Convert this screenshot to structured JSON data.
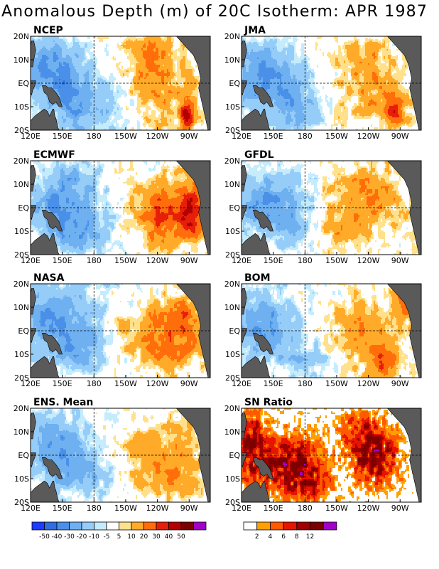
{
  "title": "Anomalous Depth (m) of 20C Isotherm: APR 1987",
  "chart_data": [
    {
      "type": "heatmap",
      "title": "NCEP",
      "xticks": [
        "120E",
        "150E",
        "180",
        "150W",
        "120W",
        "90W"
      ],
      "yticks": [
        "20N",
        "10N",
        "EQ",
        "10S",
        "20S"
      ],
      "xlim": [
        120,
        290
      ],
      "ylim": [
        -20,
        20
      ],
      "features": [
        {
          "x": 240,
          "y": 0,
          "sx": 28,
          "sy": 11,
          "v": 18
        },
        {
          "x": 268,
          "y": -14,
          "sx": 5,
          "sy": 5,
          "v": 38
        },
        {
          "x": 230,
          "y": 14,
          "sx": 15,
          "sy": 5,
          "v": 12
        },
        {
          "x": 140,
          "y": 5,
          "sx": 25,
          "sy": 10,
          "v": -32
        },
        {
          "x": 165,
          "y": -12,
          "sx": 20,
          "sy": 8,
          "v": -22
        },
        {
          "x": 200,
          "y": -8,
          "sx": 15,
          "sy": 8,
          "v": -12
        }
      ]
    },
    {
      "type": "heatmap",
      "title": "JMA",
      "xticks": [
        "120E",
        "150E",
        "180",
        "150W",
        "120W",
        "90W"
      ],
      "yticks": [
        "20N",
        "10N",
        "EQ",
        "10S",
        "20S"
      ],
      "xlim": [
        120,
        290
      ],
      "ylim": [
        -20,
        20
      ],
      "features": [
        {
          "x": 245,
          "y": -2,
          "sx": 25,
          "sy": 10,
          "v": 15
        },
        {
          "x": 265,
          "y": -13,
          "sx": 6,
          "sy": 5,
          "v": 30
        },
        {
          "x": 235,
          "y": 12,
          "sx": 15,
          "sy": 5,
          "v": 10
        },
        {
          "x": 140,
          "y": 4,
          "sx": 25,
          "sy": 10,
          "v": -30
        },
        {
          "x": 170,
          "y": -12,
          "sx": 20,
          "sy": 8,
          "v": -20
        }
      ]
    },
    {
      "type": "heatmap",
      "title": "ECMWF",
      "xticks": [
        "120E",
        "150E",
        "180",
        "150W",
        "120W",
        "90W"
      ],
      "yticks": [
        "20N",
        "10N",
        "EQ",
        "10S",
        "20S"
      ],
      "xlim": [
        120,
        290
      ],
      "ylim": [
        -20,
        20
      ],
      "features": [
        {
          "x": 255,
          "y": 0,
          "sx": 30,
          "sy": 8,
          "v": 28
        },
        {
          "x": 272,
          "y": -4,
          "sx": 8,
          "sy": 8,
          "v": 20
        },
        {
          "x": 240,
          "y": -12,
          "sx": 12,
          "sy": 6,
          "v": 12
        },
        {
          "x": 150,
          "y": 0,
          "sx": 25,
          "sy": 8,
          "v": -32
        },
        {
          "x": 170,
          "y": -12,
          "sx": 20,
          "sy": 6,
          "v": -18
        },
        {
          "x": 160,
          "y": 14,
          "sx": 20,
          "sy": 5,
          "v": -12
        }
      ]
    },
    {
      "type": "heatmap",
      "title": "GFDL",
      "xticks": [
        "120E",
        "150E",
        "180",
        "150W",
        "120W",
        "90W"
      ],
      "yticks": [
        "20N",
        "10N",
        "EQ",
        "10S",
        "20S"
      ],
      "xlim": [
        120,
        290
      ],
      "ylim": [
        -20,
        20
      ],
      "features": [
        {
          "x": 235,
          "y": 0,
          "sx": 30,
          "sy": 9,
          "v": 16
        },
        {
          "x": 205,
          "y": -12,
          "sx": 15,
          "sy": 6,
          "v": 10
        },
        {
          "x": 245,
          "y": 10,
          "sx": 20,
          "sy": 5,
          "v": 10
        },
        {
          "x": 145,
          "y": 2,
          "sx": 25,
          "sy": 9,
          "v": -30
        },
        {
          "x": 170,
          "y": -10,
          "sx": 15,
          "sy": 6,
          "v": -16
        }
      ]
    },
    {
      "type": "heatmap",
      "title": "NASA",
      "xticks": [
        "120E",
        "150E",
        "180",
        "150W",
        "120W",
        "90W"
      ],
      "yticks": [
        "20N",
        "10N",
        "EQ",
        "10S",
        "20S"
      ],
      "xlim": [
        120,
        290
      ],
      "ylim": [
        -20,
        20
      ],
      "features": [
        {
          "x": 245,
          "y": 0,
          "sx": 28,
          "sy": 8,
          "v": 22
        },
        {
          "x": 250,
          "y": -10,
          "sx": 20,
          "sy": 6,
          "v": 12
        },
        {
          "x": 265,
          "y": 8,
          "sx": 10,
          "sy": 6,
          "v": 14
        },
        {
          "x": 145,
          "y": 4,
          "sx": 28,
          "sy": 10,
          "v": -30
        },
        {
          "x": 165,
          "y": -10,
          "sx": 20,
          "sy": 6,
          "v": -16
        }
      ]
    },
    {
      "type": "heatmap",
      "title": "BOM",
      "xticks": [
        "120E",
        "150E",
        "180",
        "150W",
        "120W",
        "90W"
      ],
      "yticks": [
        "20N",
        "10N",
        "EQ",
        "10S",
        "20S"
      ],
      "xlim": [
        120,
        290
      ],
      "ylim": [
        -20,
        20
      ],
      "features": [
        {
          "x": 240,
          "y": 0,
          "sx": 28,
          "sy": 9,
          "v": 18
        },
        {
          "x": 255,
          "y": -14,
          "sx": 10,
          "sy": 5,
          "v": 25
        },
        {
          "x": 275,
          "y": 14,
          "sx": 6,
          "sy": 5,
          "v": 30
        },
        {
          "x": 140,
          "y": 2,
          "sx": 22,
          "sy": 10,
          "v": -28
        },
        {
          "x": 180,
          "y": -12,
          "sx": 15,
          "sy": 6,
          "v": -16
        }
      ]
    },
    {
      "type": "heatmap",
      "title": "ENS. Mean",
      "xticks": [
        "120E",
        "150E",
        "180",
        "150W",
        "120W",
        "90W"
      ],
      "yticks": [
        "20N",
        "10N",
        "EQ",
        "10S",
        "20S"
      ],
      "xlim": [
        120,
        290
      ],
      "ylim": [
        -20,
        20
      ],
      "features": [
        {
          "x": 245,
          "y": 0,
          "sx": 28,
          "sy": 9,
          "v": 18
        },
        {
          "x": 250,
          "y": -12,
          "sx": 20,
          "sy": 6,
          "v": 10
        },
        {
          "x": 145,
          "y": 3,
          "sx": 25,
          "sy": 10,
          "v": -28
        },
        {
          "x": 170,
          "y": -10,
          "sx": 18,
          "sy": 6,
          "v": -15
        }
      ]
    },
    {
      "type": "heatmap",
      "title": "SN Ratio",
      "xticks": [
        "120E",
        "150E",
        "180",
        "150W",
        "120W",
        "90W"
      ],
      "yticks": [
        "20N",
        "10N",
        "EQ",
        "10S",
        "20S"
      ],
      "xlim": [
        120,
        290
      ],
      "ylim": [
        -20,
        20
      ],
      "features": [
        {
          "x": 165,
          "y": -4,
          "sx": 20,
          "sy": 8,
          "v": 8
        },
        {
          "x": 245,
          "y": 0,
          "sx": 15,
          "sy": 8,
          "v": 8
        },
        {
          "x": 130,
          "y": 5,
          "sx": 10,
          "sy": 10,
          "v": 6
        },
        {
          "x": 185,
          "y": -12,
          "sx": 12,
          "sy": 5,
          "v": 5
        },
        {
          "x": 230,
          "y": 12,
          "sx": 12,
          "sy": 5,
          "v": 4
        }
      ]
    }
  ],
  "anomaly_colorbar": {
    "labels": [
      "-50",
      "-40",
      "-30",
      "-20",
      "-10",
      "-5",
      "5",
      "10",
      "20",
      "30",
      "40",
      "50"
    ],
    "colors": [
      "#1e3cff",
      "#2e6ee0",
      "#4a90e8",
      "#6eb0f0",
      "#96ccf8",
      "#c4ecfc",
      "#ffffff",
      "#ffe18c",
      "#ffaa28",
      "#ff6e0a",
      "#e61e0a",
      "#b40000",
      "#7d0000",
      "#a000c8"
    ]
  },
  "sn_colorbar": {
    "labels": [
      "2",
      "4",
      "6",
      "8",
      "12"
    ],
    "colors": [
      "#ffffff",
      "#ffa000",
      "#ff5a00",
      "#e61400",
      "#a00000",
      "#7d0000",
      "#a000c8"
    ]
  },
  "colors": {
    "land": "#5a5a5a"
  }
}
